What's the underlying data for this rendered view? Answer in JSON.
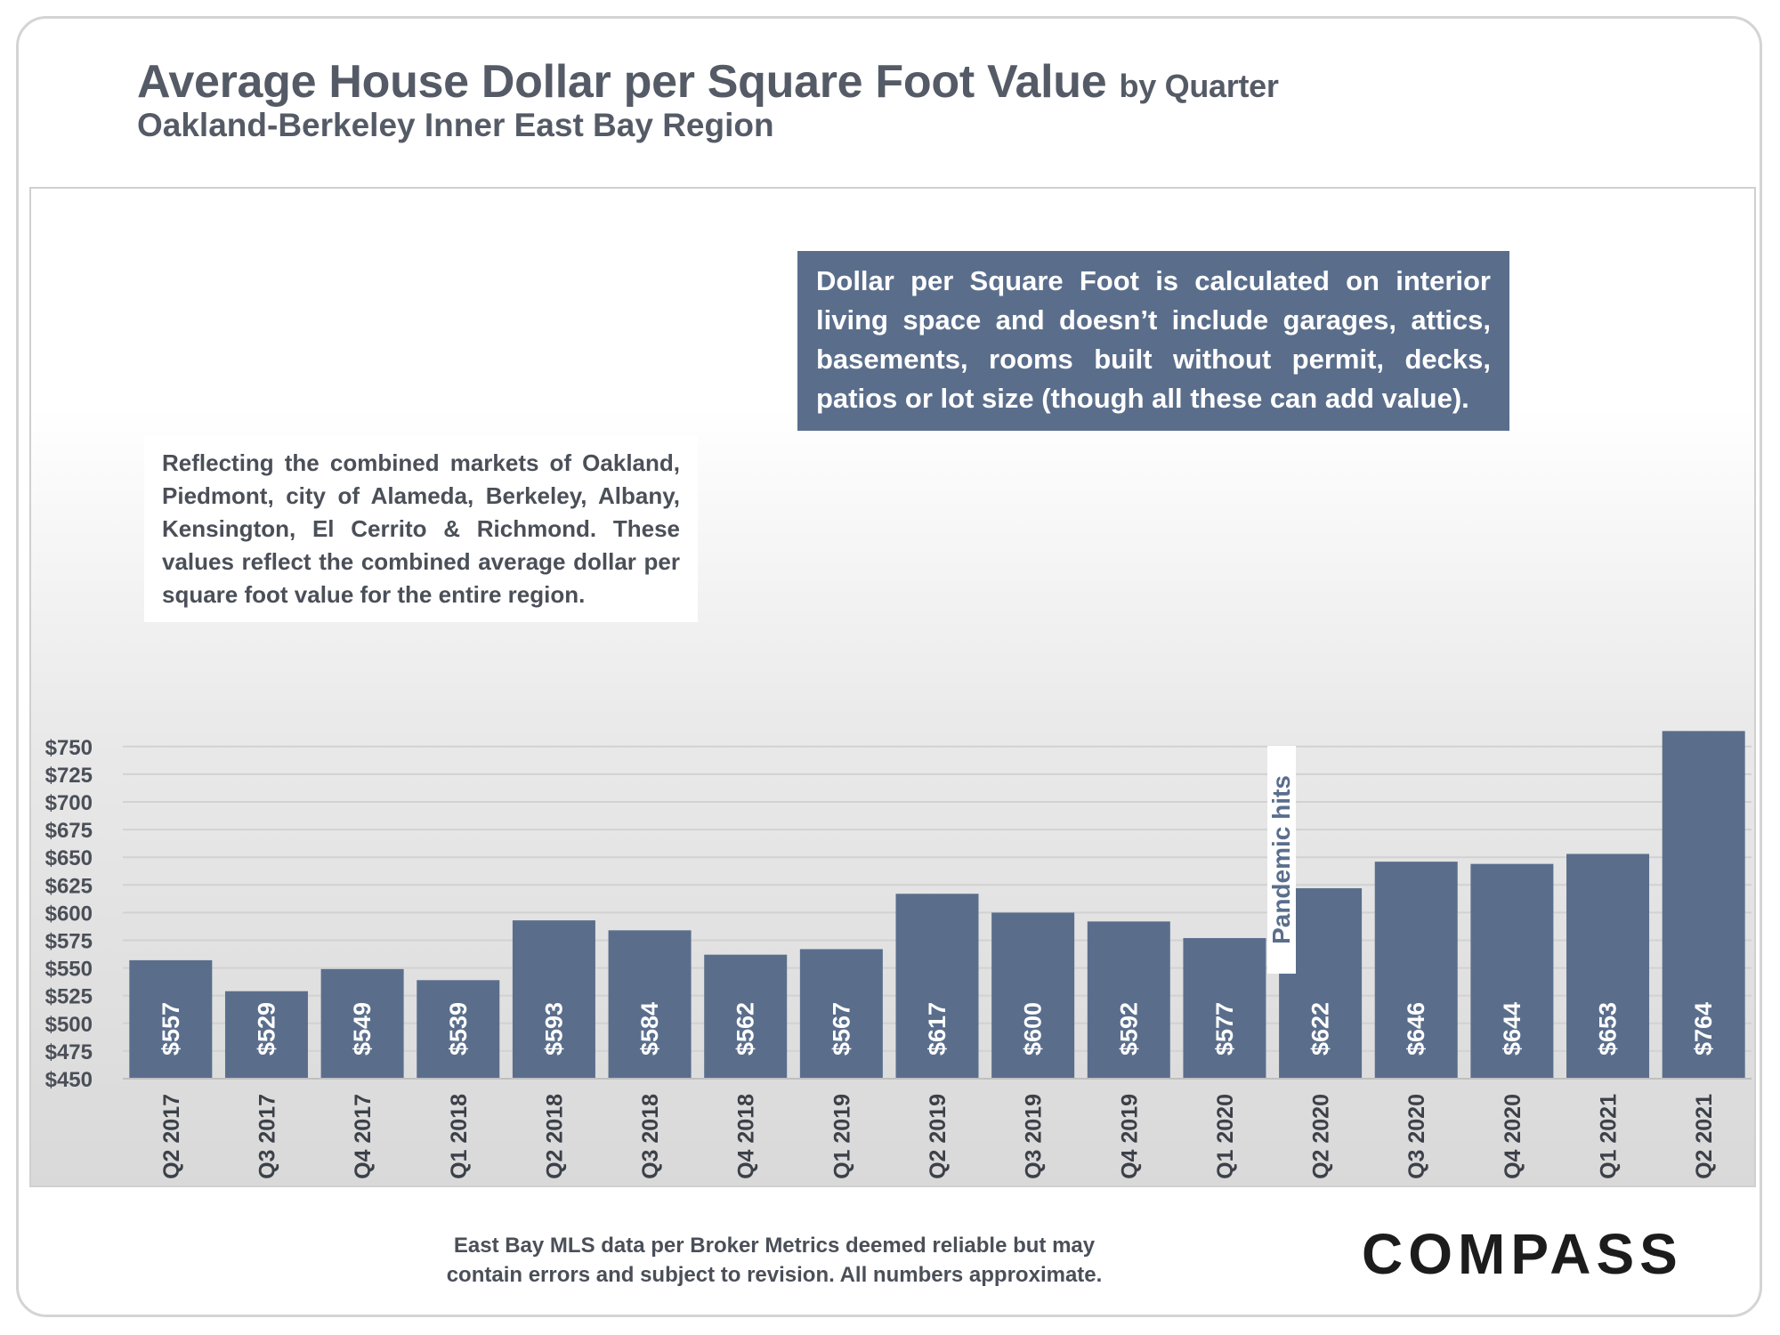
{
  "header": {
    "title": "Average House Dollar per Square Foot Value",
    "title_suffix": "by Quarter",
    "subtitle": "Oakland-Berkeley Inner East Bay Region"
  },
  "notes": {
    "left": "Reflecting the combined markets of Oakland, Piedmont, city of Alameda, Berkeley, Albany, Kensington, El Cerrito & Richmond. These values reflect the combined average dollar per square foot value for the entire region.",
    "right": "Dollar per Square Foot is calculated on interior living space and doesn’t include garages, attics, basements, rooms built without permit, decks, patios or lot size (though all these can add value).",
    "pandemic": "Pandemic hits"
  },
  "footer": {
    "source_line1": "East Bay MLS data per Broker Metrics  deemed reliable but may",
    "source_line2": "contain errors and subject to revision. All numbers approximate.",
    "logo": "COMPASS"
  },
  "chart_data": {
    "type": "bar",
    "title": "Average House Dollar per Square Foot Value by Quarter",
    "subtitle": "Oakland-Berkeley Inner East Bay Region",
    "categories": [
      "Q2 2017",
      "Q3 2017",
      "Q4 2017",
      "Q1 2018",
      "Q2 2018",
      "Q3 2018",
      "Q4 2018",
      "Q1 2019",
      "Q2 2019",
      "Q3 2019",
      "Q4 2019",
      "Q1 2020",
      "Q2 2020",
      "Q3 2020",
      "Q4 2020",
      "Q1 2021",
      "Q2 2021"
    ],
    "values": [
      557,
      529,
      549,
      539,
      593,
      584,
      562,
      567,
      617,
      600,
      592,
      577,
      622,
      646,
      644,
      653,
      764
    ],
    "value_labels": [
      "$557",
      "$529",
      "$549",
      "$539",
      "$593",
      "$584",
      "$562",
      "$567",
      "$617",
      "$600",
      "$592",
      "$577",
      "$622",
      "$646",
      "$644",
      "$653",
      "$764"
    ],
    "y_ticks": [
      "$450",
      "$475",
      "$500",
      "$525",
      "$550",
      "$575",
      "$600",
      "$625",
      "$650",
      "$675",
      "$700",
      "$725",
      "$750"
    ],
    "ylim": [
      450,
      750
    ],
    "grid": true,
    "bar_color": "#5a6e8c",
    "xlabel": "",
    "ylabel": ""
  }
}
